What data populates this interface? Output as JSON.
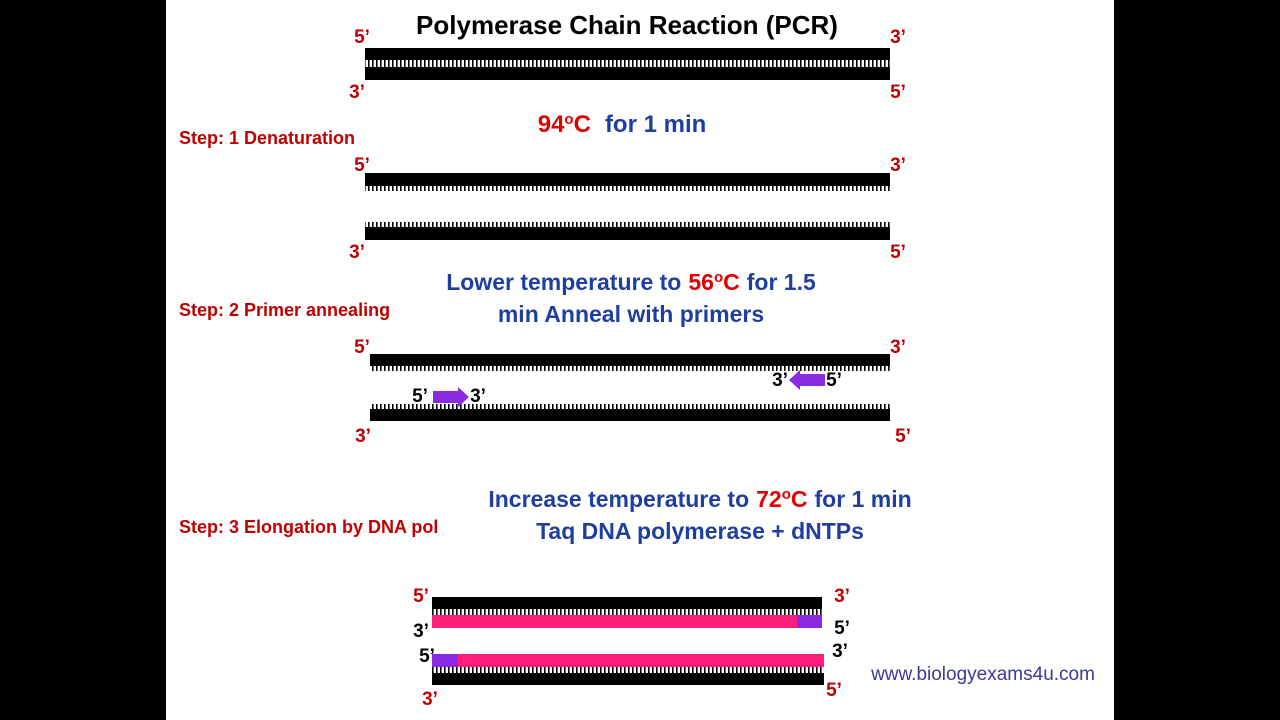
{
  "title": "Polymerase Chain Reaction (PCR)",
  "initial": {
    "ends": [
      "5’",
      "3’",
      "3’",
      "5’"
    ]
  },
  "step1": {
    "label": "Step: 1 Denaturation",
    "temp": "94",
    "degree": "o",
    "unit": "C",
    "rest": "for 1 min",
    "ends": [
      "5’",
      "3’",
      "3’",
      "5’"
    ]
  },
  "step2": {
    "label": "Step: 2 Primer annealing",
    "lead": "Lower temperature to",
    "temp": "56",
    "degree": "o",
    "unit": "C",
    "rest": "for 1.5",
    "line2": "min Anneal with primers",
    "ends": [
      "5’",
      "3’",
      "3’",
      "5’"
    ],
    "primer_ends": [
      "3’",
      "5’",
      "5’",
      "3’"
    ]
  },
  "step3": {
    "label": "Step: 3 Elongation by DNA pol",
    "lead": "Increase temperature to",
    "temp": "72",
    "degree": "o",
    "unit": "C",
    "rest": "for 1 min",
    "line2": "Taq DNA polymerase + dNTPs",
    "ends": [
      "5’",
      "3’",
      "3’",
      "5’",
      "5’",
      "3’",
      "3’",
      "5’"
    ]
  },
  "watermark": "www.biologyexams4u.com"
}
